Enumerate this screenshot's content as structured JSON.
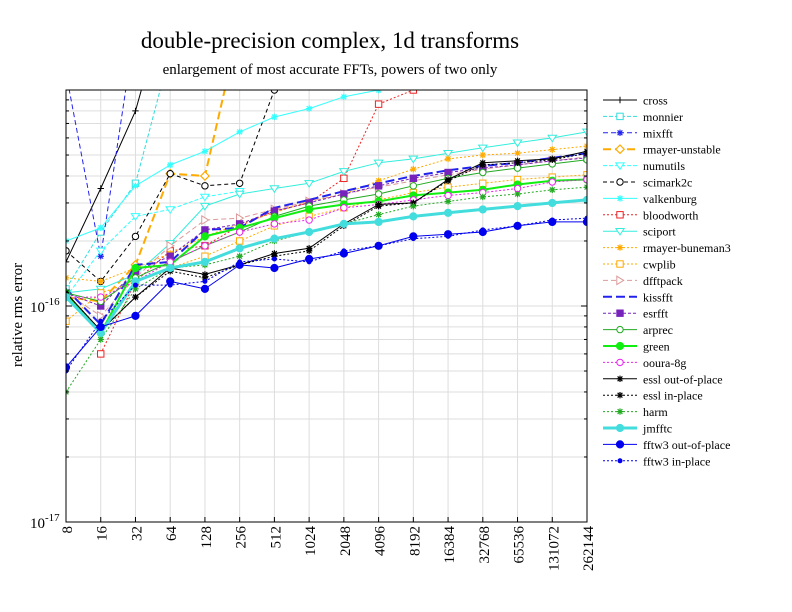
{
  "chart_data": {
    "type": "line",
    "title": "double-precision complex, 1d transforms",
    "subtitle": "enlargement of most accurate FFTs, powers of two only",
    "xlabel": "",
    "ylabel": "relative rms error",
    "x_scale": "log2",
    "y_scale": "log",
    "ylim": [
      1e-17,
      1e-15
    ],
    "y_ticks": [
      {
        "value": 1e-17,
        "label_base": "10",
        "label_exp": "-17"
      },
      {
        "value": 1e-16,
        "label_base": "10",
        "label_exp": "-16"
      }
    ],
    "x": [
      8,
      16,
      32,
      64,
      128,
      256,
      512,
      1024,
      2048,
      4096,
      8192,
      16384,
      32768,
      65536,
      131072,
      262144
    ],
    "x_tick_labels": [
      "8",
      "16",
      "32",
      "64",
      "128",
      "256",
      "512",
      "1024",
      "2048",
      "4096",
      "8192",
      "16384",
      "32768",
      "65536",
      "131072",
      "262144"
    ],
    "grid": true,
    "legend_position": "right",
    "series": [
      {
        "name": "cross",
        "color": "#000000",
        "dash": "",
        "width": 1,
        "marker": "plus",
        "values": [
          1.6e-16,
          3.5e-16,
          8e-16,
          3e-15,
          null,
          null,
          null,
          null,
          null,
          null,
          null,
          null,
          null,
          null,
          null,
          null
        ]
      },
      {
        "name": "monnier",
        "color": "#33dddd",
        "dash": "4,2",
        "width": 1,
        "marker": "square",
        "values": [
          1.2e-16,
          2.2e-16,
          3.7e-16,
          1.5e-15,
          null,
          null,
          null,
          null,
          null,
          null,
          null,
          null,
          null,
          null,
          null,
          null
        ]
      },
      {
        "name": "mixfft",
        "color": "#2222ee",
        "dash": "5,3",
        "width": 1,
        "marker": "star",
        "values": [
          1.2e-15,
          1.7e-16,
          2e-15,
          null,
          null,
          null,
          null,
          null,
          null,
          null,
          null,
          null,
          null,
          null,
          null,
          null
        ]
      },
      {
        "name": "rmayer-unstable",
        "color": "#ffaa00",
        "dash": "8,4",
        "width": 2,
        "marker": "diamond",
        "values": [
          1.1e-16,
          1.05e-16,
          1.55e-16,
          4.1e-16,
          4e-16,
          2e-15,
          null,
          null,
          null,
          null,
          null,
          null,
          null,
          null,
          null,
          null
        ]
      },
      {
        "name": "numutils",
        "color": "#33ffff",
        "dash": "4,2",
        "width": 1,
        "marker": "triangle-down",
        "values": [
          1.1e-16,
          1.8e-16,
          2.6e-16,
          2.8e-16,
          3.2e-16,
          3.4e-16,
          null,
          null,
          null,
          null,
          null,
          null,
          null,
          null,
          null,
          null
        ]
      },
      {
        "name": "scimark2c",
        "color": "#000000",
        "dash": "4,3",
        "width": 1,
        "marker": "circle",
        "values": [
          1.8e-16,
          1.3e-16,
          2.1e-16,
          4.1e-16,
          3.6e-16,
          3.7e-16,
          1e-15,
          1.4e-15,
          null,
          null,
          null,
          null,
          null,
          null,
          null,
          null
        ]
      },
      {
        "name": "valkenburg",
        "color": "#33ffff",
        "dash": "",
        "width": 1,
        "marker": "star",
        "values": [
          2e-16,
          2.3e-16,
          3.6e-16,
          4.5e-16,
          5.2e-16,
          6.4e-16,
          7.5e-16,
          8.2e-16,
          9.3e-16,
          1e-15,
          1.05e-15,
          1.1e-15,
          null,
          null,
          null,
          null
        ]
      },
      {
        "name": "bloodworth",
        "color": "#ee2222",
        "dash": "2,2",
        "width": 1,
        "marker": "square",
        "values": [
          null,
          6e-17,
          1.3e-16,
          1.8e-16,
          1.9e-16,
          2.35e-16,
          2.75e-16,
          3e-16,
          3.9e-16,
          8.6e-16,
          1e-15,
          1.1e-15,
          null,
          null,
          null,
          null
        ]
      },
      {
        "name": "sciport",
        "color": "#33eedd",
        "dash": "",
        "width": 1,
        "marker": "triangle-down",
        "values": [
          1.15e-16,
          1.2e-16,
          1.4e-16,
          1.95e-16,
          2.9e-16,
          3.3e-16,
          3.5e-16,
          3.7e-16,
          4.2e-16,
          4.6e-16,
          4.8e-16,
          5.1e-16,
          5.4e-16,
          5.7e-16,
          6e-16,
          6.4e-16
        ]
      },
      {
        "name": "rmayer-buneman3",
        "color": "#ffaa00",
        "dash": "2,2",
        "width": 1,
        "marker": "star",
        "values": [
          1.35e-16,
          1.3e-16,
          1.5e-16,
          1.75e-16,
          2.1e-16,
          2.4e-16,
          2.7e-16,
          3.05e-16,
          3.3e-16,
          3.8e-16,
          4.3e-16,
          4.8e-16,
          5e-16,
          5.1e-16,
          5.3e-16,
          5.5e-16
        ]
      },
      {
        "name": "cwplib",
        "color": "#ffaa00",
        "dash": "2,2",
        "width": 1,
        "marker": "square",
        "values": [
          8.5e-17,
          1.15e-16,
          1.3e-16,
          1.5e-16,
          1.7e-16,
          2e-16,
          2.35e-16,
          2.6e-16,
          2.85e-16,
          3.1e-16,
          3.35e-16,
          3.55e-16,
          3.7e-16,
          3.85e-16,
          3.95e-16,
          4.05e-16
        ]
      },
      {
        "name": "dfftpack",
        "color": "#dd9999",
        "dash": "5,3",
        "width": 1,
        "marker": "triangle-right",
        "values": [
          1.15e-16,
          9e-17,
          1.35e-16,
          1.9e-16,
          2.5e-16,
          2.55e-16,
          2.8e-16,
          3.05e-16,
          3.3e-16,
          3.55e-16,
          3.8e-16,
          4.05e-16,
          4.3e-16,
          4.5e-16,
          4.7e-16,
          4.9e-16
        ]
      },
      {
        "name": "kissfft",
        "color": "#2222ee",
        "dash": "9,4",
        "width": 2,
        "marker": "none",
        "values": [
          1.2e-16,
          8.2e-17,
          1.55e-16,
          1.6e-16,
          2.25e-16,
          2.3e-16,
          2.85e-16,
          3.1e-16,
          3.4e-16,
          3.7e-16,
          4e-16,
          4.25e-16,
          4.45e-16,
          4.6e-16,
          4.85e-16,
          5.1e-16
        ]
      },
      {
        "name": "esrfft",
        "color": "#7722bb",
        "dash": "3,2",
        "width": 1,
        "marker": "square-filled",
        "values": [
          1.15e-16,
          1e-16,
          1.45e-16,
          1.7e-16,
          2.25e-16,
          2.4e-16,
          2.75e-16,
          3e-16,
          3.3e-16,
          3.6e-16,
          3.9e-16,
          4.15e-16,
          4.35e-16,
          4.5e-16,
          4.7e-16,
          4.85e-16
        ]
      },
      {
        "name": "arprec",
        "color": "#22aa22",
        "dash": "",
        "width": 1,
        "marker": "circle",
        "values": [
          1.15e-16,
          1.05e-16,
          1.35e-16,
          1.6e-16,
          1.9e-16,
          2.2e-16,
          2.6e-16,
          2.9e-16,
          3.1e-16,
          3.3e-16,
          3.6e-16,
          3.9e-16,
          4.15e-16,
          4.35e-16,
          4.55e-16,
          4.75e-16
        ]
      },
      {
        "name": "green",
        "color": "#11ee11",
        "dash": "",
        "width": 2,
        "marker": "dot",
        "values": [
          1.15e-16,
          7.5e-17,
          1.5e-16,
          1.55e-16,
          2.1e-16,
          2.3e-16,
          2.55e-16,
          2.8e-16,
          2.95e-16,
          3.05e-16,
          3.25e-16,
          3.35e-16,
          3.45e-16,
          3.65e-16,
          3.8e-16,
          3.85e-16
        ]
      },
      {
        "name": "ooura-8g",
        "color": "#ee22ee",
        "dash": "2,2",
        "width": 1,
        "marker": "circle",
        "values": [
          1.1e-16,
          1.1e-16,
          1.3e-16,
          1.6e-16,
          1.9e-16,
          2.2e-16,
          2.4e-16,
          2.5e-16,
          2.85e-16,
          2.95e-16,
          3.1e-16,
          3.25e-16,
          3.35e-16,
          3.5e-16,
          3.75e-16,
          3.85e-16
        ]
      },
      {
        "name": "essl out-of-place",
        "color": "#000000",
        "dash": "",
        "width": 1,
        "marker": "star",
        "values": [
          1.15e-16,
          7.7e-17,
          1.1e-16,
          1.5e-16,
          1.4e-16,
          1.55e-16,
          1.75e-16,
          1.85e-16,
          2.4e-16,
          2.95e-16,
          3e-16,
          3.85e-16,
          4.6e-16,
          4.7e-16,
          4.8e-16,
          5.2e-16
        ]
      },
      {
        "name": "essl in-place",
        "color": "#000000",
        "dash": "2,2",
        "width": 1,
        "marker": "star",
        "values": [
          1.15e-16,
          7.7e-17,
          1.1e-16,
          1.45e-16,
          1.35e-16,
          1.55e-16,
          1.7e-16,
          1.8e-16,
          2.35e-16,
          2.9e-16,
          3e-16,
          3.8e-16,
          4.5e-16,
          4.6e-16,
          4.75e-16,
          5.1e-16
        ]
      },
      {
        "name": "harm",
        "color": "#22aa22",
        "dash": "2,2",
        "width": 1,
        "marker": "star",
        "values": [
          4e-17,
          7e-17,
          1.2e-16,
          1.5e-16,
          1.55e-16,
          1.7e-16,
          2e-16,
          2.2e-16,
          2.4e-16,
          2.65e-16,
          2.9e-16,
          3.05e-16,
          3.2e-16,
          3.3e-16,
          3.45e-16,
          3.55e-16
        ]
      },
      {
        "name": "jmfftc",
        "color": "#44dddd",
        "dash": "",
        "width": 3,
        "marker": "dot",
        "values": [
          1.1e-16,
          7.5e-17,
          1.3e-16,
          1.5e-16,
          1.6e-16,
          1.85e-16,
          2.05e-16,
          2.2e-16,
          2.4e-16,
          2.45e-16,
          2.6e-16,
          2.7e-16,
          2.8e-16,
          2.9e-16,
          3e-16,
          3.1e-16
        ]
      },
      {
        "name": "fftw3 out-of-place",
        "color": "#0000ee",
        "dash": "",
        "width": 1,
        "marker": "dot",
        "values": [
          5.2e-17,
          8e-17,
          9e-17,
          1.3e-16,
          1.2e-16,
          1.55e-16,
          1.5e-16,
          1.65e-16,
          1.75e-16,
          1.9e-16,
          2.1e-16,
          2.15e-16,
          2.2e-16,
          2.35e-16,
          2.45e-16,
          2.45e-16
        ]
      },
      {
        "name": "fftw3 in-place",
        "color": "#0000ee",
        "dash": "2,2",
        "width": 1,
        "marker": "dot-small",
        "values": [
          5e-17,
          8.5e-17,
          1.25e-16,
          1.25e-16,
          1.3e-16,
          1.6e-16,
          1.65e-16,
          1.6e-16,
          1.8e-16,
          1.9e-16,
          2.05e-16,
          2.1e-16,
          2.25e-16,
          2.35e-16,
          2.5e-16,
          2.55e-16
        ]
      }
    ]
  }
}
